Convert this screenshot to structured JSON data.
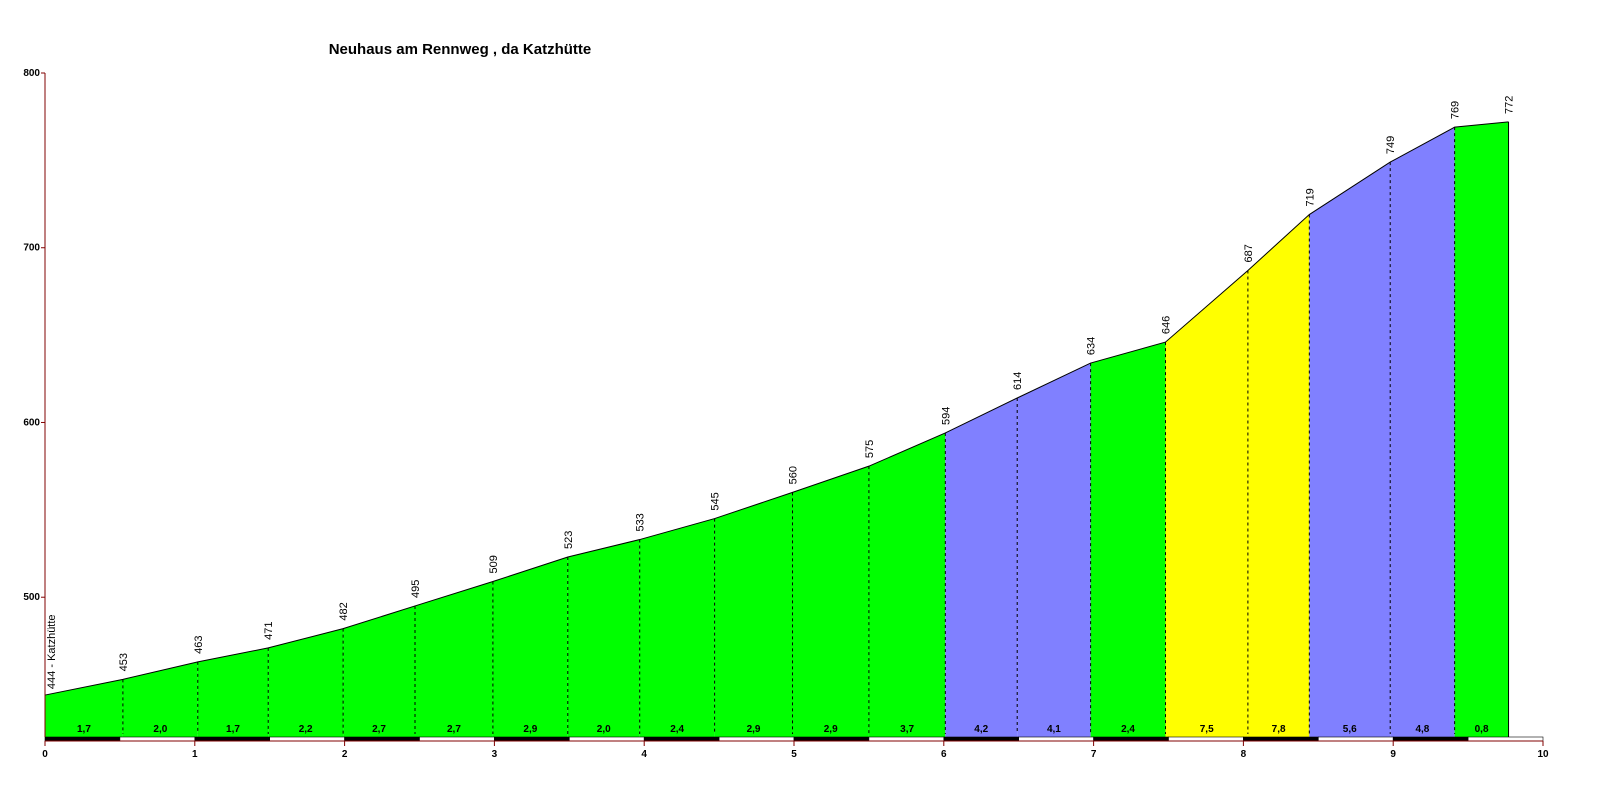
{
  "chart_data": {
    "type": "area",
    "title": "Neuhaus am Rennweg , da Katzhütte",
    "xlabel": "",
    "ylabel": "",
    "xlim": [
      0,
      10
    ],
    "ylim": [
      420,
      800
    ],
    "x_ticks": [
      "0",
      "1",
      "2",
      "3",
      "4",
      "5",
      "6",
      "7",
      "8",
      "9",
      "10"
    ],
    "y_ticks": [
      "500",
      "600",
      "700",
      "800"
    ],
    "start_label": "444 - Katzhütte",
    "points": [
      {
        "x": 0.0,
        "y": 444,
        "label": ""
      },
      {
        "x": 0.52,
        "y": 453,
        "label": "453"
      },
      {
        "x": 1.02,
        "y": 463,
        "label": "463"
      },
      {
        "x": 1.49,
        "y": 471,
        "label": "471"
      },
      {
        "x": 1.99,
        "y": 482,
        "label": "482"
      },
      {
        "x": 2.47,
        "y": 495,
        "label": "495"
      },
      {
        "x": 2.99,
        "y": 509,
        "label": "509"
      },
      {
        "x": 3.49,
        "y": 523,
        "label": "523"
      },
      {
        "x": 3.97,
        "y": 533,
        "label": "533"
      },
      {
        "x": 4.47,
        "y": 545,
        "label": "545"
      },
      {
        "x": 4.99,
        "y": 560,
        "label": "560"
      },
      {
        "x": 5.5,
        "y": 575,
        "label": "575"
      },
      {
        "x": 6.01,
        "y": 594,
        "label": "594"
      },
      {
        "x": 6.49,
        "y": 614,
        "label": "614"
      },
      {
        "x": 6.98,
        "y": 634,
        "label": "634"
      },
      {
        "x": 7.48,
        "y": 646,
        "label": "646"
      },
      {
        "x": 8.03,
        "y": 687,
        "label": "687"
      },
      {
        "x": 8.44,
        "y": 719,
        "label": "719"
      },
      {
        "x": 8.98,
        "y": 749,
        "label": "749"
      },
      {
        "x": 9.41,
        "y": 769,
        "label": "769"
      },
      {
        "x": 9.77,
        "y": 772,
        "label": "772"
      }
    ],
    "gradients": [
      "1,7",
      "2,0",
      "1,7",
      "2,2",
      "2,7",
      "2,7",
      "2,9",
      "2,0",
      "2,4",
      "2,9",
      "2,9",
      "3,7",
      "4,2",
      "4,1",
      "2,4",
      "7,5",
      "7,8",
      "5,6",
      "4,8",
      "0,8"
    ],
    "segment_colors": [
      "#00ff00",
      "#00ff00",
      "#00ff00",
      "#00ff00",
      "#00ff00",
      "#00ff00",
      "#00ff00",
      "#00ff00",
      "#00ff00",
      "#00ff00",
      "#00ff00",
      "#00ff00",
      "#8080ff",
      "#8080ff",
      "#00ff00",
      "#ffff00",
      "#ffff00",
      "#8080ff",
      "#8080ff",
      "#00ff00"
    ],
    "grid": false,
    "axis_color": "#800000"
  }
}
